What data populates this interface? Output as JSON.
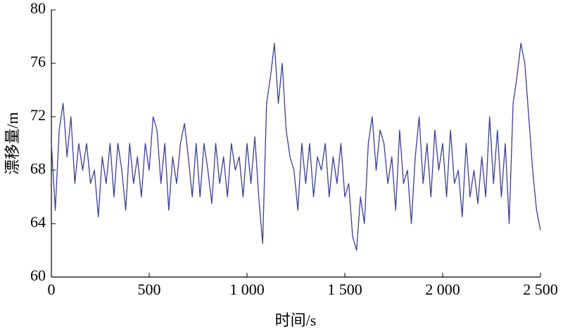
{
  "chart_data": {
    "type": "line",
    "x_label": "时间/s",
    "y_label": "漂移量/m",
    "x": [
      0,
      20,
      40,
      60,
      80,
      100,
      120,
      140,
      160,
      180,
      200,
      220,
      240,
      260,
      280,
      300,
      320,
      340,
      360,
      380,
      400,
      420,
      440,
      460,
      480,
      500,
      520,
      540,
      560,
      580,
      600,
      620,
      640,
      660,
      680,
      700,
      720,
      740,
      760,
      780,
      800,
      820,
      840,
      860,
      880,
      900,
      920,
      940,
      960,
      980,
      1000,
      1020,
      1040,
      1060,
      1080,
      1100,
      1120,
      1140,
      1160,
      1180,
      1200,
      1220,
      1240,
      1260,
      1280,
      1300,
      1320,
      1340,
      1360,
      1380,
      1400,
      1420,
      1440,
      1460,
      1480,
      1500,
      1520,
      1540,
      1560,
      1580,
      1600,
      1620,
      1640,
      1660,
      1680,
      1700,
      1720,
      1740,
      1760,
      1780,
      1800,
      1820,
      1840,
      1860,
      1880,
      1900,
      1920,
      1940,
      1960,
      1980,
      2000,
      2020,
      2040,
      2060,
      2080,
      2100,
      2120,
      2140,
      2160,
      2180,
      2200,
      2220,
      2240,
      2260,
      2280,
      2300,
      2320,
      2340,
      2360,
      2380,
      2400,
      2420,
      2440,
      2460,
      2480,
      2500
    ],
    "series": [
      {
        "color": "#3a3f96",
        "values": [
          70,
          65,
          71,
          73,
          69,
          72,
          67,
          70,
          68,
          70,
          67,
          68,
          64.5,
          69,
          67,
          70,
          66,
          70,
          68,
          65,
          70,
          67,
          69,
          66,
          70,
          68,
          72,
          71,
          67,
          70,
          65,
          69,
          67,
          70,
          71.5,
          69,
          66,
          70,
          66,
          70,
          68,
          65.5,
          70,
          67,
          69,
          66,
          70,
          68,
          69,
          66,
          70,
          67,
          70.5,
          66,
          62.5,
          73,
          75,
          77.5,
          73,
          76,
          71,
          69,
          68,
          65,
          70,
          67,
          70,
          66,
          69,
          68,
          70,
          66,
          69,
          67,
          70,
          66,
          67,
          63,
          62,
          66,
          64,
          70,
          72,
          68,
          71,
          70,
          67,
          69,
          65,
          71,
          67,
          68,
          64,
          69,
          72,
          67,
          70,
          66,
          71,
          68,
          70,
          66,
          71,
          67,
          68,
          64.5,
          70,
          66,
          68,
          65.5,
          69,
          66,
          72,
          67,
          71,
          66,
          70,
          64,
          73,
          75,
          77.5,
          76,
          72,
          68,
          65,
          63.5
        ]
      }
    ],
    "xlim": [
      0,
      2500
    ],
    "xticks": [
      0,
      500,
      {
        "value": 1000,
        "label": "1 000"
      },
      {
        "value": 1500,
        "label": "1 500"
      },
      {
        "value": 2000,
        "label": "2 000"
      },
      {
        "value": 2500,
        "label": "2 500"
      }
    ],
    "ylim": [
      60,
      80
    ],
    "yticks": [
      60,
      64,
      68,
      72,
      76,
      80
    ]
  }
}
